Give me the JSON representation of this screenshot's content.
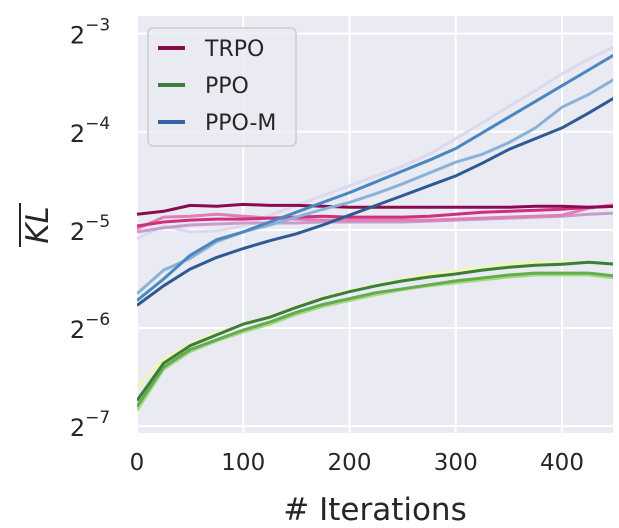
{
  "chart_data": {
    "type": "line",
    "title": "",
    "xlabel": "# Iterations",
    "ylabel": "KL",
    "ylabel_overline": true,
    "xlim": [
      0,
      448
    ],
    "ylim_log2": [
      -7.07,
      -2.82
    ],
    "yscale": "log2",
    "grid": true,
    "legend_position": "top-left",
    "x_ticks": [
      0,
      100,
      200,
      300,
      400
    ],
    "y_ticks": [
      {
        "base": "2",
        "exp": "−3",
        "log2": -3
      },
      {
        "base": "2",
        "exp": "−4",
        "log2": -4
      },
      {
        "base": "2",
        "exp": "−5",
        "log2": -5
      },
      {
        "base": "2",
        "exp": "−6",
        "log2": -6
      },
      {
        "base": "2",
        "exp": "−7",
        "log2": -7
      }
    ],
    "x": [
      0,
      25,
      50,
      75,
      100,
      125,
      150,
      175,
      200,
      225,
      250,
      275,
      300,
      325,
      350,
      375,
      400,
      425,
      450
    ],
    "legend": [
      {
        "name": "TRPO",
        "color": "#8b0a50"
      },
      {
        "name": "PPO",
        "color": "#3b7d3b"
      },
      {
        "name": "PPO-M",
        "color": "#3565a0"
      }
    ],
    "series": [
      {
        "group": "PPO-M",
        "color": "#ddd8ee",
        "log2_values": [
          -5.09,
          -4.96,
          -5.02,
          -5.01,
          -4.96,
          -4.85,
          -4.75,
          -4.65,
          -4.55,
          -4.45,
          -4.35,
          -4.23,
          -4.07,
          -3.91,
          -3.74,
          -3.58,
          -3.41,
          -3.26,
          -3.13
        ]
      },
      {
        "group": "TRPO",
        "color": "#c89ccc",
        "log2_values": [
          -5.02,
          -4.98,
          -4.95,
          -4.94,
          -4.93,
          -4.93,
          -4.93,
          -4.92,
          -4.92,
          -4.92,
          -4.92,
          -4.91,
          -4.9,
          -4.89,
          -4.88,
          -4.87,
          -4.86,
          -4.84,
          -4.83
        ]
      },
      {
        "group": "TRPO",
        "color": "#e07fb5",
        "log2_values": [
          -4.99,
          -4.87,
          -4.86,
          -4.84,
          -4.86,
          -4.88,
          -4.89,
          -4.9,
          -4.9,
          -4.9,
          -4.9,
          -4.9,
          -4.89,
          -4.88,
          -4.87,
          -4.86,
          -4.85,
          -4.78,
          -4.74
        ]
      },
      {
        "group": "TRPO",
        "color": "#cf2f7c",
        "log2_values": [
          -4.96,
          -4.92,
          -4.9,
          -4.89,
          -4.89,
          -4.88,
          -4.87,
          -4.86,
          -4.87,
          -4.87,
          -4.87,
          -4.86,
          -4.84,
          -4.82,
          -4.81,
          -4.8,
          -4.79,
          -4.77,
          -4.76
        ]
      },
      {
        "group": "TRPO",
        "color": "#8b0a50",
        "log2_values": [
          -4.84,
          -4.81,
          -4.75,
          -4.76,
          -4.74,
          -4.75,
          -4.75,
          -4.76,
          -4.77,
          -4.77,
          -4.77,
          -4.77,
          -4.77,
          -4.77,
          -4.77,
          -4.76,
          -4.76,
          -4.77,
          -4.76
        ]
      },
      {
        "group": "PPO",
        "color": "#f2f6b5",
        "log2_values": [
          -6.6,
          -6.32,
          -6.16,
          -6.05,
          -5.96,
          -5.88,
          -5.78,
          -5.69,
          -5.62,
          -5.56,
          -5.5,
          -5.45,
          -5.42,
          -5.38,
          -5.35,
          -5.33,
          -5.33,
          -5.33,
          -5.35
        ]
      },
      {
        "group": "PPO",
        "color": "#a8d982",
        "log2_values": [
          -6.84,
          -6.42,
          -6.24,
          -6.13,
          -6.04,
          -5.96,
          -5.86,
          -5.78,
          -5.72,
          -5.66,
          -5.61,
          -5.57,
          -5.54,
          -5.51,
          -5.48,
          -5.46,
          -5.46,
          -5.46,
          -5.49
        ]
      },
      {
        "group": "PPO",
        "color": "#62ad4d",
        "log2_values": [
          -6.8,
          -6.4,
          -6.22,
          -6.12,
          -6.02,
          -5.94,
          -5.84,
          -5.76,
          -5.7,
          -5.64,
          -5.6,
          -5.56,
          -5.52,
          -5.49,
          -5.46,
          -5.44,
          -5.44,
          -5.44,
          -5.47
        ]
      },
      {
        "group": "PPO",
        "color": "#3b7d3b",
        "log2_values": [
          -6.74,
          -6.36,
          -6.18,
          -6.07,
          -5.96,
          -5.89,
          -5.79,
          -5.7,
          -5.63,
          -5.57,
          -5.52,
          -5.48,
          -5.45,
          -5.41,
          -5.38,
          -5.36,
          -5.35,
          -5.33,
          -5.35
        ]
      },
      {
        "group": "PPO-M",
        "color": "#8ab2d8",
        "log2_values": [
          -5.65,
          -5.41,
          -5.29,
          -5.12,
          -5.02,
          -4.95,
          -4.87,
          -4.79,
          -4.72,
          -4.63,
          -4.53,
          -4.42,
          -4.31,
          -4.23,
          -4.11,
          -3.96,
          -3.75,
          -3.62,
          -3.46
        ]
      },
      {
        "group": "PPO-M",
        "color": "#4a87c0",
        "log2_values": [
          -5.72,
          -5.5,
          -5.26,
          -5.1,
          -5.02,
          -4.92,
          -4.82,
          -4.72,
          -4.62,
          -4.51,
          -4.4,
          -4.29,
          -4.17,
          -4.01,
          -3.85,
          -3.69,
          -3.53,
          -3.37,
          -3.21
        ]
      },
      {
        "group": "PPO-M",
        "color": "#2e5a94",
        "log2_values": [
          -5.77,
          -5.57,
          -5.4,
          -5.28,
          -5.19,
          -5.11,
          -5.04,
          -4.95,
          -4.85,
          -4.75,
          -4.65,
          -4.55,
          -4.45,
          -4.32,
          -4.18,
          -4.07,
          -3.96,
          -3.81,
          -3.65
        ]
      }
    ]
  }
}
